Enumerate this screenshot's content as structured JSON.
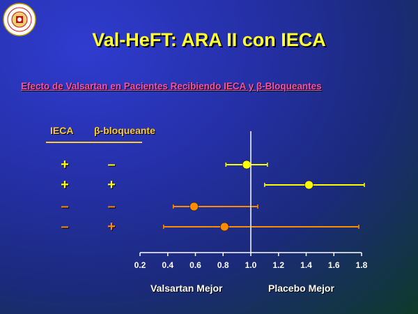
{
  "title": "Val-HeFT: ARA II con IECA",
  "subtitle": "Efecto de Valsartan en Pacientes Recibiendo IECA y  β-Bloqueantes",
  "table_headers": {
    "col1": "IECA",
    "col2": "β-bloqueante"
  },
  "rows": [
    {
      "ieca": "+",
      "beta": "–",
      "color": "#ffff00"
    },
    {
      "ieca": "+",
      "beta": "+",
      "color": "#ffff00"
    },
    {
      "ieca": "–",
      "beta": "–",
      "color": "#ff8c00"
    },
    {
      "ieca": "–",
      "beta": "+",
      "color": "#ff8c00"
    }
  ],
  "captions": {
    "left": "Valsartan Mejor",
    "right": "Placebo Mejor"
  },
  "colors": {
    "title": "#ffff33",
    "subtitle": "#ff4fa3",
    "header": "#ffcc33",
    "axis": "#ffffff"
  },
  "chart_data": {
    "type": "scatter",
    "xlim": [
      0.2,
      1.8
    ],
    "x_ticks": [
      "0.2",
      "0.4",
      "0.6",
      "0.8",
      "1.0",
      "1.2",
      "1.4",
      "1.6",
      "1.8"
    ],
    "reference_line": 1.0,
    "points": [
      {
        "estimate": 0.97,
        "lower": 0.82,
        "upper": 1.12
      },
      {
        "estimate": 1.42,
        "lower": 1.1,
        "upper": 1.82
      },
      {
        "estimate": 0.59,
        "lower": 0.44,
        "upper": 1.05
      },
      {
        "estimate": 0.81,
        "lower": 0.37,
        "upper": 1.78
      }
    ]
  }
}
